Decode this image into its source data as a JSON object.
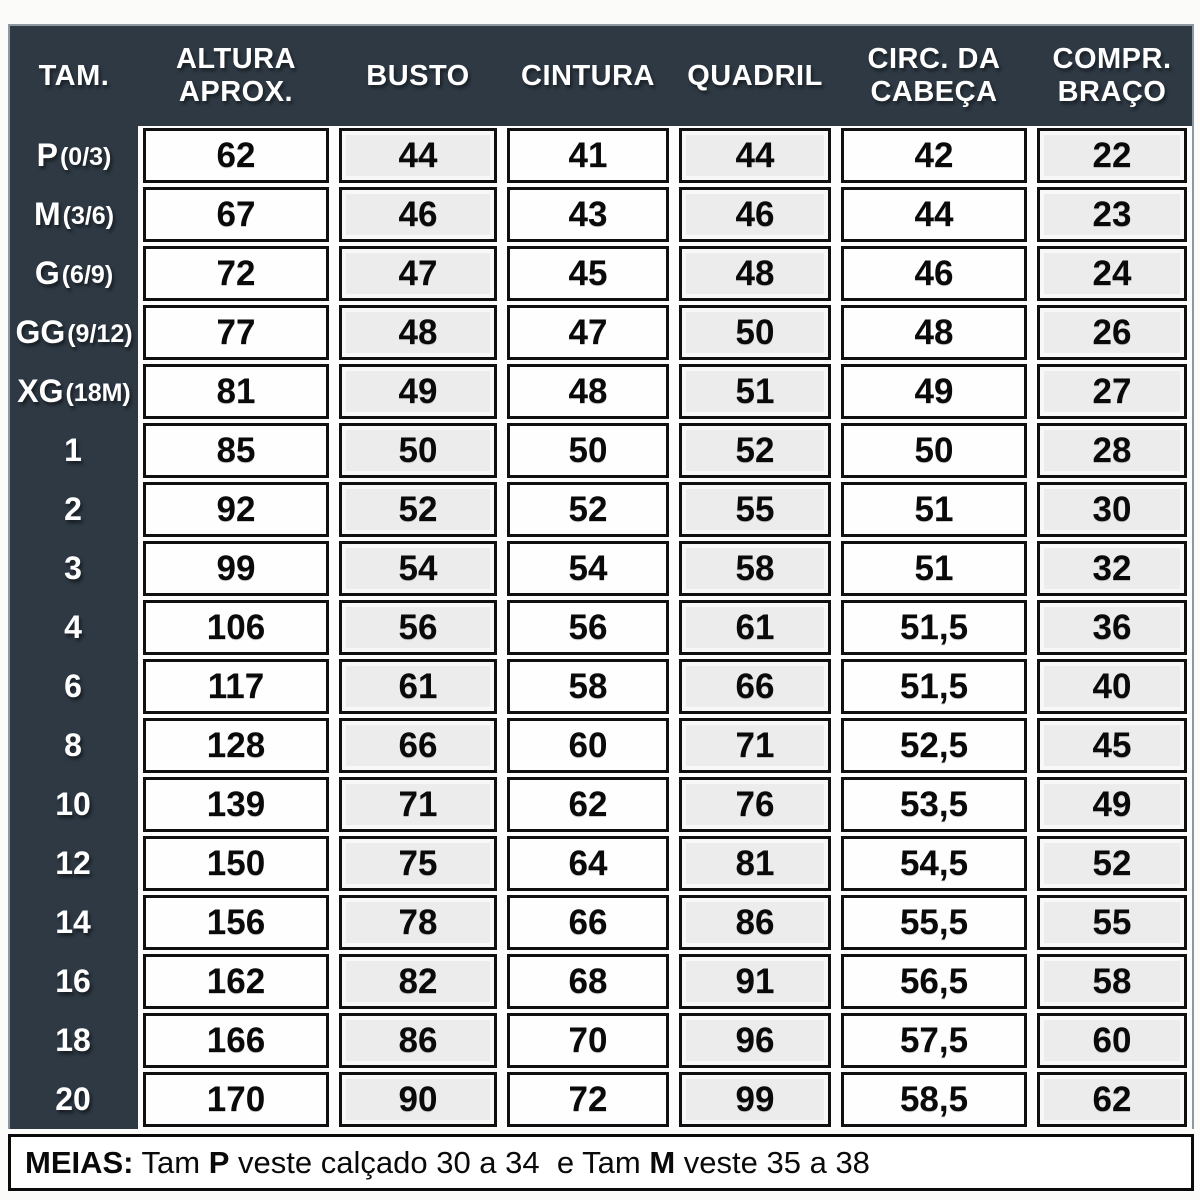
{
  "chart_data": {
    "type": "table",
    "columns": [
      {
        "label": "TAM.",
        "lines": [
          "TAM."
        ]
      },
      {
        "label": "ALTURA APROX.",
        "lines": [
          "ALTURA",
          "APROX."
        ]
      },
      {
        "label": "BUSTO",
        "lines": [
          "BUSTO"
        ]
      },
      {
        "label": "CINTURA",
        "lines": [
          "CINTURA"
        ]
      },
      {
        "label": "QUADRIL",
        "lines": [
          "QUADRIL"
        ]
      },
      {
        "label": "CIRC. DA CABEÇA",
        "lines": [
          "CIRC. DA",
          "CABEÇA"
        ]
      },
      {
        "label": "COMPR. BRAÇO",
        "lines": [
          "COMPR.",
          "BRAÇO"
        ]
      }
    ],
    "rows": [
      {
        "size": "P",
        "size_sub": "(0/3)",
        "values": [
          "62",
          "44",
          "41",
          "44",
          "42",
          "22"
        ]
      },
      {
        "size": "M",
        "size_sub": "(3/6)",
        "values": [
          "67",
          "46",
          "43",
          "46",
          "44",
          "23"
        ]
      },
      {
        "size": "G",
        "size_sub": "(6/9)",
        "values": [
          "72",
          "47",
          "45",
          "48",
          "46",
          "24"
        ]
      },
      {
        "size": "GG",
        "size_sub": "(9/12)",
        "values": [
          "77",
          "48",
          "47",
          "50",
          "48",
          "26"
        ]
      },
      {
        "size": "XG",
        "size_sub": "(18M)",
        "values": [
          "81",
          "49",
          "48",
          "51",
          "49",
          "27"
        ]
      },
      {
        "size": "1",
        "size_sub": "",
        "values": [
          "85",
          "50",
          "50",
          "52",
          "50",
          "28"
        ]
      },
      {
        "size": "2",
        "size_sub": "",
        "values": [
          "92",
          "52",
          "52",
          "55",
          "51",
          "30"
        ]
      },
      {
        "size": "3",
        "size_sub": "",
        "values": [
          "99",
          "54",
          "54",
          "58",
          "51",
          "32"
        ]
      },
      {
        "size": "4",
        "size_sub": "",
        "values": [
          "106",
          "56",
          "56",
          "61",
          "51,5",
          "36"
        ]
      },
      {
        "size": "6",
        "size_sub": "",
        "values": [
          "117",
          "61",
          "58",
          "66",
          "51,5",
          "40"
        ]
      },
      {
        "size": "8",
        "size_sub": "",
        "values": [
          "128",
          "66",
          "60",
          "71",
          "52,5",
          "45"
        ]
      },
      {
        "size": "10",
        "size_sub": "",
        "values": [
          "139",
          "71",
          "62",
          "76",
          "53,5",
          "49"
        ]
      },
      {
        "size": "12",
        "size_sub": "",
        "values": [
          "150",
          "75",
          "64",
          "81",
          "54,5",
          "52"
        ]
      },
      {
        "size": "14",
        "size_sub": "",
        "values": [
          "156",
          "78",
          "66",
          "86",
          "55,5",
          "55"
        ]
      },
      {
        "size": "16",
        "size_sub": "",
        "values": [
          "162",
          "82",
          "68",
          "91",
          "56,5",
          "58"
        ]
      },
      {
        "size": "18",
        "size_sub": "",
        "values": [
          "166",
          "86",
          "70",
          "96",
          "57,5",
          "60"
        ]
      },
      {
        "size": "20",
        "size_sub": "",
        "values": [
          "170",
          "90",
          "72",
          "99",
          "58,5",
          "62"
        ]
      }
    ],
    "footnote": "MEIAS: Tam P veste calçado 30 a 34  e Tam M veste 35 a 38"
  },
  "footer": {
    "label": "MEIAS:",
    "t1": " Tam ",
    "b1": "P",
    "t2": " veste calçado 30 a 34  e Tam ",
    "b2": "M",
    "t3": " veste 35 a 38"
  },
  "colors": {
    "frame_dark": "#2e3944",
    "cell_white": "#fefefe",
    "cell_shade": "#ececec",
    "grid_border": "#101010",
    "header_text": "#ffffff",
    "value_text": "#0a0a0a"
  }
}
